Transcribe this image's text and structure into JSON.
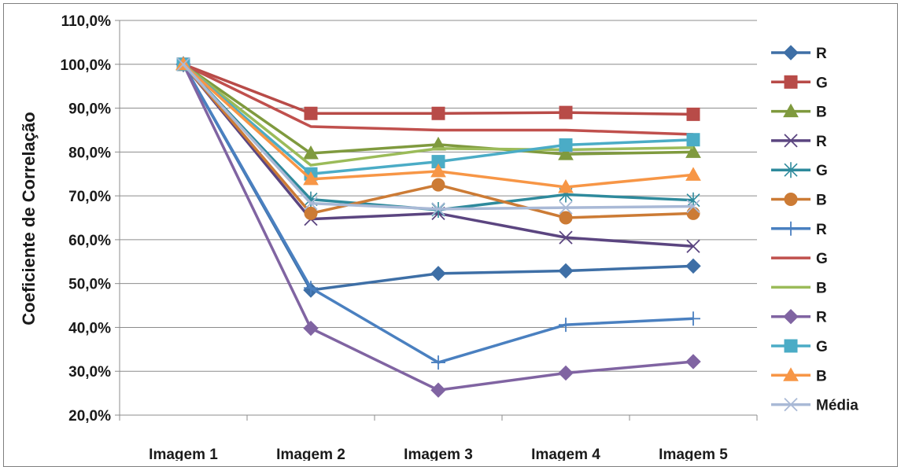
{
  "chart_data": {
    "type": "line",
    "categories": [
      "Imagem 1",
      "Imagem 2",
      "Imagem 3",
      "Imagem 4",
      "Imagem 5"
    ],
    "ylabel": "Coeficiente de Correlação",
    "ylim": [
      20,
      110
    ],
    "yticks": [
      "20,0%",
      "30,0%",
      "40,0%",
      "50,0%",
      "60,0%",
      "70,0%",
      "80,0%",
      "90,0%",
      "100,0%",
      "110,0%"
    ],
    "grid": "horizontal",
    "legend": "right",
    "series": [
      {
        "name": "R",
        "color": "#3e6fa6",
        "marker": "diamond",
        "values": [
          100,
          48.5,
          52.3,
          52.9,
          54.0
        ]
      },
      {
        "name": "G",
        "color": "#b84b48",
        "marker": "square",
        "values": [
          100,
          88.8,
          88.8,
          89.0,
          88.6
        ]
      },
      {
        "name": "B",
        "color": "#7f9a3e",
        "marker": "triangle",
        "values": [
          100,
          79.7,
          81.7,
          79.5,
          80.0
        ]
      },
      {
        "name": "R",
        "color": "#5b4580",
        "marker": "x",
        "values": [
          100,
          64.7,
          66.0,
          60.5,
          58.5
        ]
      },
      {
        "name": "G",
        "color": "#2e8a9c",
        "marker": "asterisk",
        "values": [
          100,
          69.2,
          66.8,
          70.3,
          69.0
        ]
      },
      {
        "name": "B",
        "color": "#cc7b35",
        "marker": "circle",
        "values": [
          100,
          66.0,
          72.5,
          65.0,
          66.0
        ]
      },
      {
        "name": "R",
        "color": "#4a80c0",
        "marker": "plus",
        "values": [
          100,
          49.0,
          32.0,
          40.6,
          42.0
        ]
      },
      {
        "name": "G",
        "color": "#c0504d",
        "marker": "none",
        "values": [
          100,
          85.8,
          85.0,
          85.0,
          84.0
        ]
      },
      {
        "name": "B",
        "color": "#9bbb59",
        "marker": "none",
        "values": [
          100,
          77.0,
          80.8,
          80.5,
          81.0
        ]
      },
      {
        "name": "R",
        "color": "#8064a2",
        "marker": "diamond",
        "values": [
          100,
          39.8,
          25.7,
          29.6,
          32.2
        ]
      },
      {
        "name": "G",
        "color": "#4bacc6",
        "marker": "square",
        "values": [
          100,
          75.0,
          77.8,
          81.6,
          82.8
        ]
      },
      {
        "name": "B",
        "color": "#f79646",
        "marker": "triangle",
        "values": [
          100,
          73.8,
          75.6,
          72.0,
          74.8
        ]
      },
      {
        "name": "Média",
        "color": "#a9b9d6",
        "marker": "x",
        "values": [
          100,
          68.3,
          67.0,
          67.3,
          67.6
        ]
      }
    ]
  }
}
